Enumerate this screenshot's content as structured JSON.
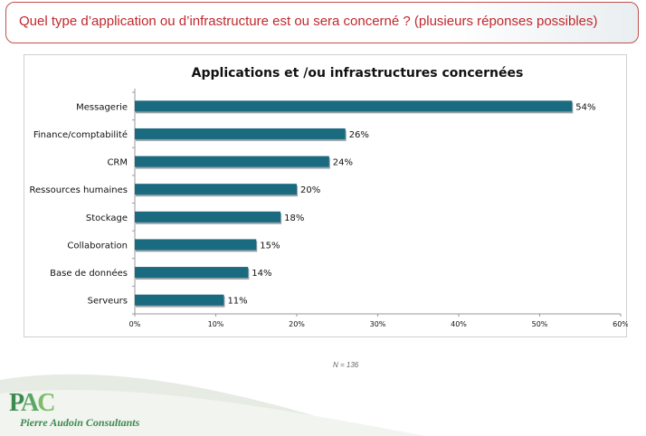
{
  "question": "Quel type d’application ou d’infrastructure est ou sera concerné ? (plusieurs réponses possibles)",
  "sample_note": "N = 136",
  "brand": {
    "logo_text": "PAC",
    "name": "Pierre Audoin Consultants",
    "colors": {
      "primary": "#3d8b4f",
      "light": "#7cbd6a"
    }
  },
  "chart_data": {
    "type": "bar",
    "orientation": "horizontal",
    "title": "Applications et /ou infrastructures concernées",
    "categories": [
      "Messagerie",
      "Finance/comptabilité",
      "CRM",
      "Ressources humaines",
      "Stockage",
      "Collaboration",
      "Base de données",
      "Serveurs"
    ],
    "values": [
      54,
      26,
      24,
      20,
      18,
      15,
      14,
      11
    ],
    "data_labels": [
      "54%",
      "26%",
      "24%",
      "20%",
      "18%",
      "15%",
      "14%",
      "11%"
    ],
    "xlim": [
      0,
      60
    ],
    "x_ticks": [
      0,
      10,
      20,
      30,
      40,
      50,
      60
    ],
    "x_tick_labels": [
      "0%",
      "10%",
      "20%",
      "30%",
      "40%",
      "50%",
      "60%"
    ],
    "grid": false,
    "bar_color": "#1a6a80"
  }
}
